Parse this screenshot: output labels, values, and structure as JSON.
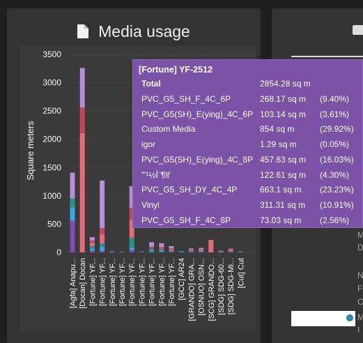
{
  "card": {
    "title": "Media usage",
    "title_icon": "document-icon"
  },
  "chart_data": {
    "type": "bar",
    "stacked": true,
    "ylabel": "Square meters",
    "ylim": [
      0,
      3500
    ],
    "yticks": [
      0,
      500,
      1000,
      1500,
      2000,
      2500,
      3000,
      3500
    ],
    "categories": [
      "[Agfa] Anapu...",
      "[Docan] Docan",
      "[Fortune] YF...",
      "[Fortune] YF...",
      "[Fortune] YF...",
      "[Fortune] YF...",
      "[Fortune] YF...",
      "[Fortune] YF...",
      "[Fortune] YF...",
      "[Fortune] YF...",
      "[Fortune] YF...",
      "[GCC] AR24",
      "[GRANDO] GRA...",
      "[OSNUO] OSN...",
      "[SCG] GRANDO...",
      "[SDG] SDG-60...",
      "[SDG] SDG-Mi...",
      "[Cut] Cut"
    ],
    "series": [
      {
        "color": "#7b4fb0",
        "values": [
          560,
          0,
          30,
          30,
          10,
          5,
          40,
          10,
          10,
          10,
          10,
          5,
          10,
          10,
          0,
          5,
          10,
          5
        ]
      },
      {
        "color": "#39a7e6",
        "values": [
          240,
          0,
          40,
          70,
          10,
          0,
          40,
          0,
          20,
          20,
          10,
          0,
          10,
          10,
          0,
          10,
          5,
          0
        ]
      },
      {
        "color": "#2f8f87",
        "values": [
          150,
          0,
          40,
          60,
          0,
          10,
          180,
          10,
          40,
          20,
          10,
          20,
          10,
          5,
          0,
          5,
          5,
          10
        ]
      },
      {
        "color": "#e46b7b",
        "values": [
          0,
          2110,
          60,
          160,
          0,
          0,
          320,
          0,
          0,
          10,
          20,
          0,
          15,
          20,
          220,
          10,
          20,
          5
        ]
      },
      {
        "color": "#c8445a",
        "values": [
          0,
          450,
          40,
          110,
          0,
          0,
          210,
          0,
          30,
          30,
          20,
          0,
          10,
          10,
          0,
          0,
          10,
          0
        ]
      },
      {
        "color": "#b38fd8",
        "values": [
          460,
          700,
          60,
          840,
          0,
          0,
          380,
          0,
          80,
          70,
          40,
          0,
          15,
          25,
          0,
          0,
          15,
          0
        ]
      }
    ]
  },
  "tooltip": {
    "header": "[Fortune] YF-2512",
    "total": {
      "label": "Total",
      "value": "2854.28 sq m"
    },
    "rows": [
      {
        "label": "PVC_G5_SH_F_4C_6P",
        "value": "268.17 sq m",
        "pct": "(9.40%)"
      },
      {
        "label": "PVC_G5(SH)_E(ying)_4C_6P",
        "value": "103.14 sq m",
        "pct": "(3.61%)"
      },
      {
        "label": "Custom Media",
        "value": "854 sq m",
        "pct": "(29.92%)"
      },
      {
        "label": "igor",
        "value": "1.29 sq m",
        "pct": "(0.05%)"
      },
      {
        "label": "PVC_G5(SH)_E(ying)_4C_8P",
        "value": "457.63 sq m",
        "pct": "(16.03%)"
      },
      {
        "label": "\"'¹½Í¨¶ll'",
        "value": "122.61 sq m",
        "pct": "(4.30%)"
      },
      {
        "label": "PVC_G5_SH_DY_4C_4P",
        "value": "663.1 sq m",
        "pct": "(23.23%)"
      },
      {
        "label": "Vinyl",
        "value": "311.31 sq m",
        "pct": "(10.91%)"
      },
      {
        "label": "PVC_G5_SH_F_4C_8P",
        "value": "73.03 sq m",
        "pct": "(2.56%)"
      }
    ]
  },
  "right_panel": {
    "icon": "printer-icon",
    "edge_letters": [
      "M",
      "D",
      "N",
      "F",
      "C",
      "M",
      "I"
    ],
    "corner_icon": "globe-icon"
  }
}
